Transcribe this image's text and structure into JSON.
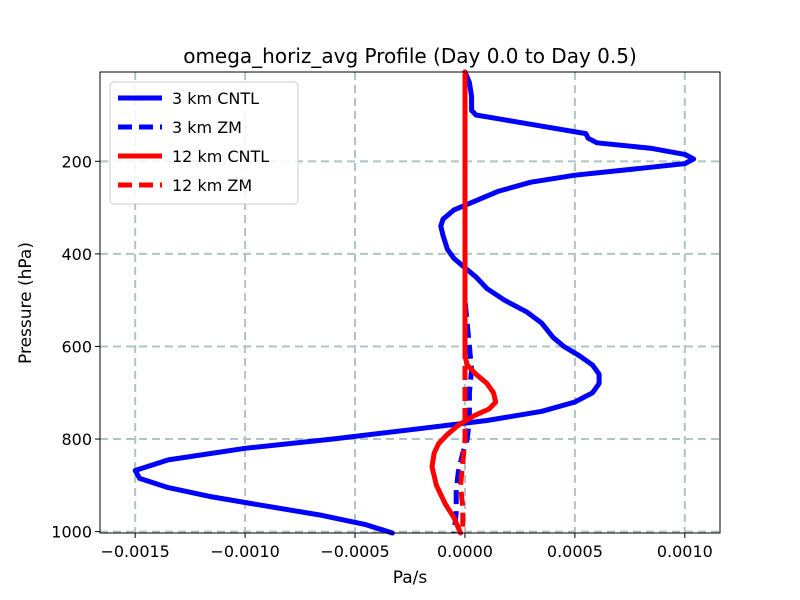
{
  "chart_data": {
    "type": "line",
    "title": "omega_horiz_avg Profile (Day 0.0 to Day 0.5)",
    "xlabel": "Pa/s",
    "ylabel": "Pressure (hPa)",
    "xlim": [
      -0.00166,
      0.00116
    ],
    "ylim": [
      1003,
      7
    ],
    "y_inverted": true,
    "grid": true,
    "legend_position": "top-left",
    "x_ticks": [
      -0.0015,
      -0.001,
      -0.0005,
      0.0,
      0.0005,
      0.001
    ],
    "x_tick_labels": [
      "−0.0015",
      "−0.0010",
      "−0.0005",
      "0.0000",
      "0.0005",
      "0.0010"
    ],
    "y_ticks": [
      200,
      400,
      600,
      800,
      1000
    ],
    "y_tick_labels": [
      "200",
      "400",
      "600",
      "800",
      "1000"
    ],
    "series": [
      {
        "name": "3 km CNTL",
        "color": "#0000ff",
        "style": "solid",
        "points": [
          [
            0.0,
            7
          ],
          [
            2e-05,
            30
          ],
          [
            3e-05,
            60
          ],
          [
            3e-05,
            90
          ],
          [
            5e-05,
            100
          ],
          [
            0.00015,
            108
          ],
          [
            0.0003,
            120
          ],
          [
            0.00055,
            140
          ],
          [
            0.00056,
            150
          ],
          [
            0.0006,
            160
          ],
          [
            0.00085,
            172
          ],
          [
            0.001,
            185
          ],
          [
            0.00104,
            195
          ],
          [
            0.001,
            205
          ],
          [
            0.0008,
            215
          ],
          [
            0.0005,
            230
          ],
          [
            0.0003,
            245
          ],
          [
            0.00015,
            265
          ],
          [
            5e-05,
            285
          ],
          [
            -5e-05,
            305
          ],
          [
            -0.0001,
            325
          ],
          [
            -0.00011,
            340
          ],
          [
            -0.0001,
            360
          ],
          [
            -8e-05,
            390
          ],
          [
            -5e-05,
            410
          ],
          [
            0.0,
            430
          ],
          [
            5e-05,
            450
          ],
          [
            0.0001,
            475
          ],
          [
            0.00018,
            500
          ],
          [
            0.00028,
            525
          ],
          [
            0.00035,
            550
          ],
          [
            0.0004,
            580
          ],
          [
            0.00045,
            600
          ],
          [
            0.00052,
            620
          ],
          [
            0.00058,
            640
          ],
          [
            0.00061,
            660
          ],
          [
            0.00061,
            680
          ],
          [
            0.00058,
            700
          ],
          [
            0.0005,
            720
          ],
          [
            0.00035,
            740
          ],
          [
            0.0001,
            760
          ],
          [
            -0.00025,
            780
          ],
          [
            -0.0006,
            800
          ],
          [
            -0.001,
            820
          ],
          [
            -0.00135,
            845
          ],
          [
            -0.0015,
            868
          ],
          [
            -0.00148,
            885
          ],
          [
            -0.00135,
            905
          ],
          [
            -0.00115,
            925
          ],
          [
            -0.0009,
            945
          ],
          [
            -0.00065,
            965
          ],
          [
            -0.00045,
            985
          ],
          [
            -0.00033,
            1003
          ]
        ]
      },
      {
        "name": "3 km ZM",
        "color": "#0000ff",
        "style": "dashed",
        "points": [
          [
            0.0,
            7
          ],
          [
            0.0,
            300
          ],
          [
            0.0,
            500
          ],
          [
            2e-05,
            600
          ],
          [
            3e-05,
            650
          ],
          [
            2e-05,
            700
          ],
          [
            2e-05,
            760
          ],
          [
            1e-05,
            800
          ],
          [
            -1e-05,
            830
          ],
          [
            -3e-05,
            870
          ],
          [
            -4e-05,
            910
          ],
          [
            -4e-05,
            960
          ],
          [
            -5e-05,
            1003
          ]
        ]
      },
      {
        "name": "12 km CNTL",
        "color": "#ff0000",
        "style": "solid",
        "points": [
          [
            0.0,
            7
          ],
          [
            0.0,
            300
          ],
          [
            0.0,
            500
          ],
          [
            0.0,
            620
          ],
          [
            1e-05,
            640
          ],
          [
            5e-05,
            660
          ],
          [
            0.0001,
            680
          ],
          [
            0.00013,
            700
          ],
          [
            0.00014,
            720
          ],
          [
            0.00011,
            735
          ],
          [
            4e-05,
            750
          ],
          [
            -3e-05,
            770
          ],
          [
            -8e-05,
            790
          ],
          [
            -0.00012,
            810
          ],
          [
            -0.00014,
            830
          ],
          [
            -0.00015,
            860
          ],
          [
            -0.00013,
            900
          ],
          [
            -9e-05,
            940
          ],
          [
            -5e-05,
            970
          ],
          [
            -2e-05,
            1003
          ]
        ]
      },
      {
        "name": "12 km ZM",
        "color": "#ff0000",
        "style": "dashed",
        "points": [
          [
            0.0,
            7
          ],
          [
            0.0,
            500
          ],
          [
            0.0,
            700
          ],
          [
            0.0,
            800
          ],
          [
            -1e-05,
            850
          ],
          [
            -2e-05,
            900
          ],
          [
            -1e-05,
            950
          ],
          [
            -1e-05,
            1003
          ]
        ]
      }
    ]
  }
}
